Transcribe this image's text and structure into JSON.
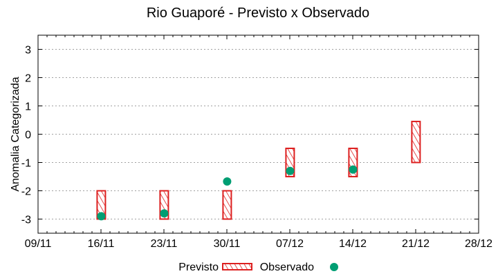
{
  "chart_data": {
    "type": "floating-bar+scatter",
    "title": "Rio Guaporé - Previsto x Observado",
    "xlabel": "",
    "ylabel": "Anomalia Categorizada",
    "ylim": [
      -3.5,
      3.5
    ],
    "yticks": [
      -3,
      -2,
      -1,
      0,
      1,
      2,
      3
    ],
    "xticks": [
      "09/11",
      "16/11",
      "23/11",
      "30/11",
      "07/12",
      "14/12",
      "21/12",
      "28/12"
    ],
    "grid": "horizontal dotted",
    "legend_position": "bottom",
    "series": [
      {
        "name": "Previsto",
        "kind": "range-box",
        "color": "#dd1f1f",
        "pattern": "diagonal-hatch",
        "points": [
          {
            "x": "16/11",
            "low": -3,
            "high": -2
          },
          {
            "x": "23/11",
            "low": -3,
            "high": -2
          },
          {
            "x": "30/11",
            "low": -3,
            "high": -2
          },
          {
            "x": "07/12",
            "low": -1.5,
            "high": -0.5
          },
          {
            "x": "14/12",
            "low": -1.5,
            "high": -0.5
          },
          {
            "x": "21/12",
            "low": -1,
            "high": 0.45
          }
        ]
      },
      {
        "name": "Observado",
        "kind": "scatter",
        "color": "#009e73",
        "points": [
          {
            "x": "16/11",
            "y": -2.9
          },
          {
            "x": "23/11",
            "y": -2.8
          },
          {
            "x": "30/11",
            "y": -1.67
          },
          {
            "x": "07/12",
            "y": -1.3
          },
          {
            "x": "14/12",
            "y": -1.25
          }
        ]
      }
    ]
  },
  "legend": {
    "previsto_label": "Previsto",
    "observado_label": "Observado"
  }
}
